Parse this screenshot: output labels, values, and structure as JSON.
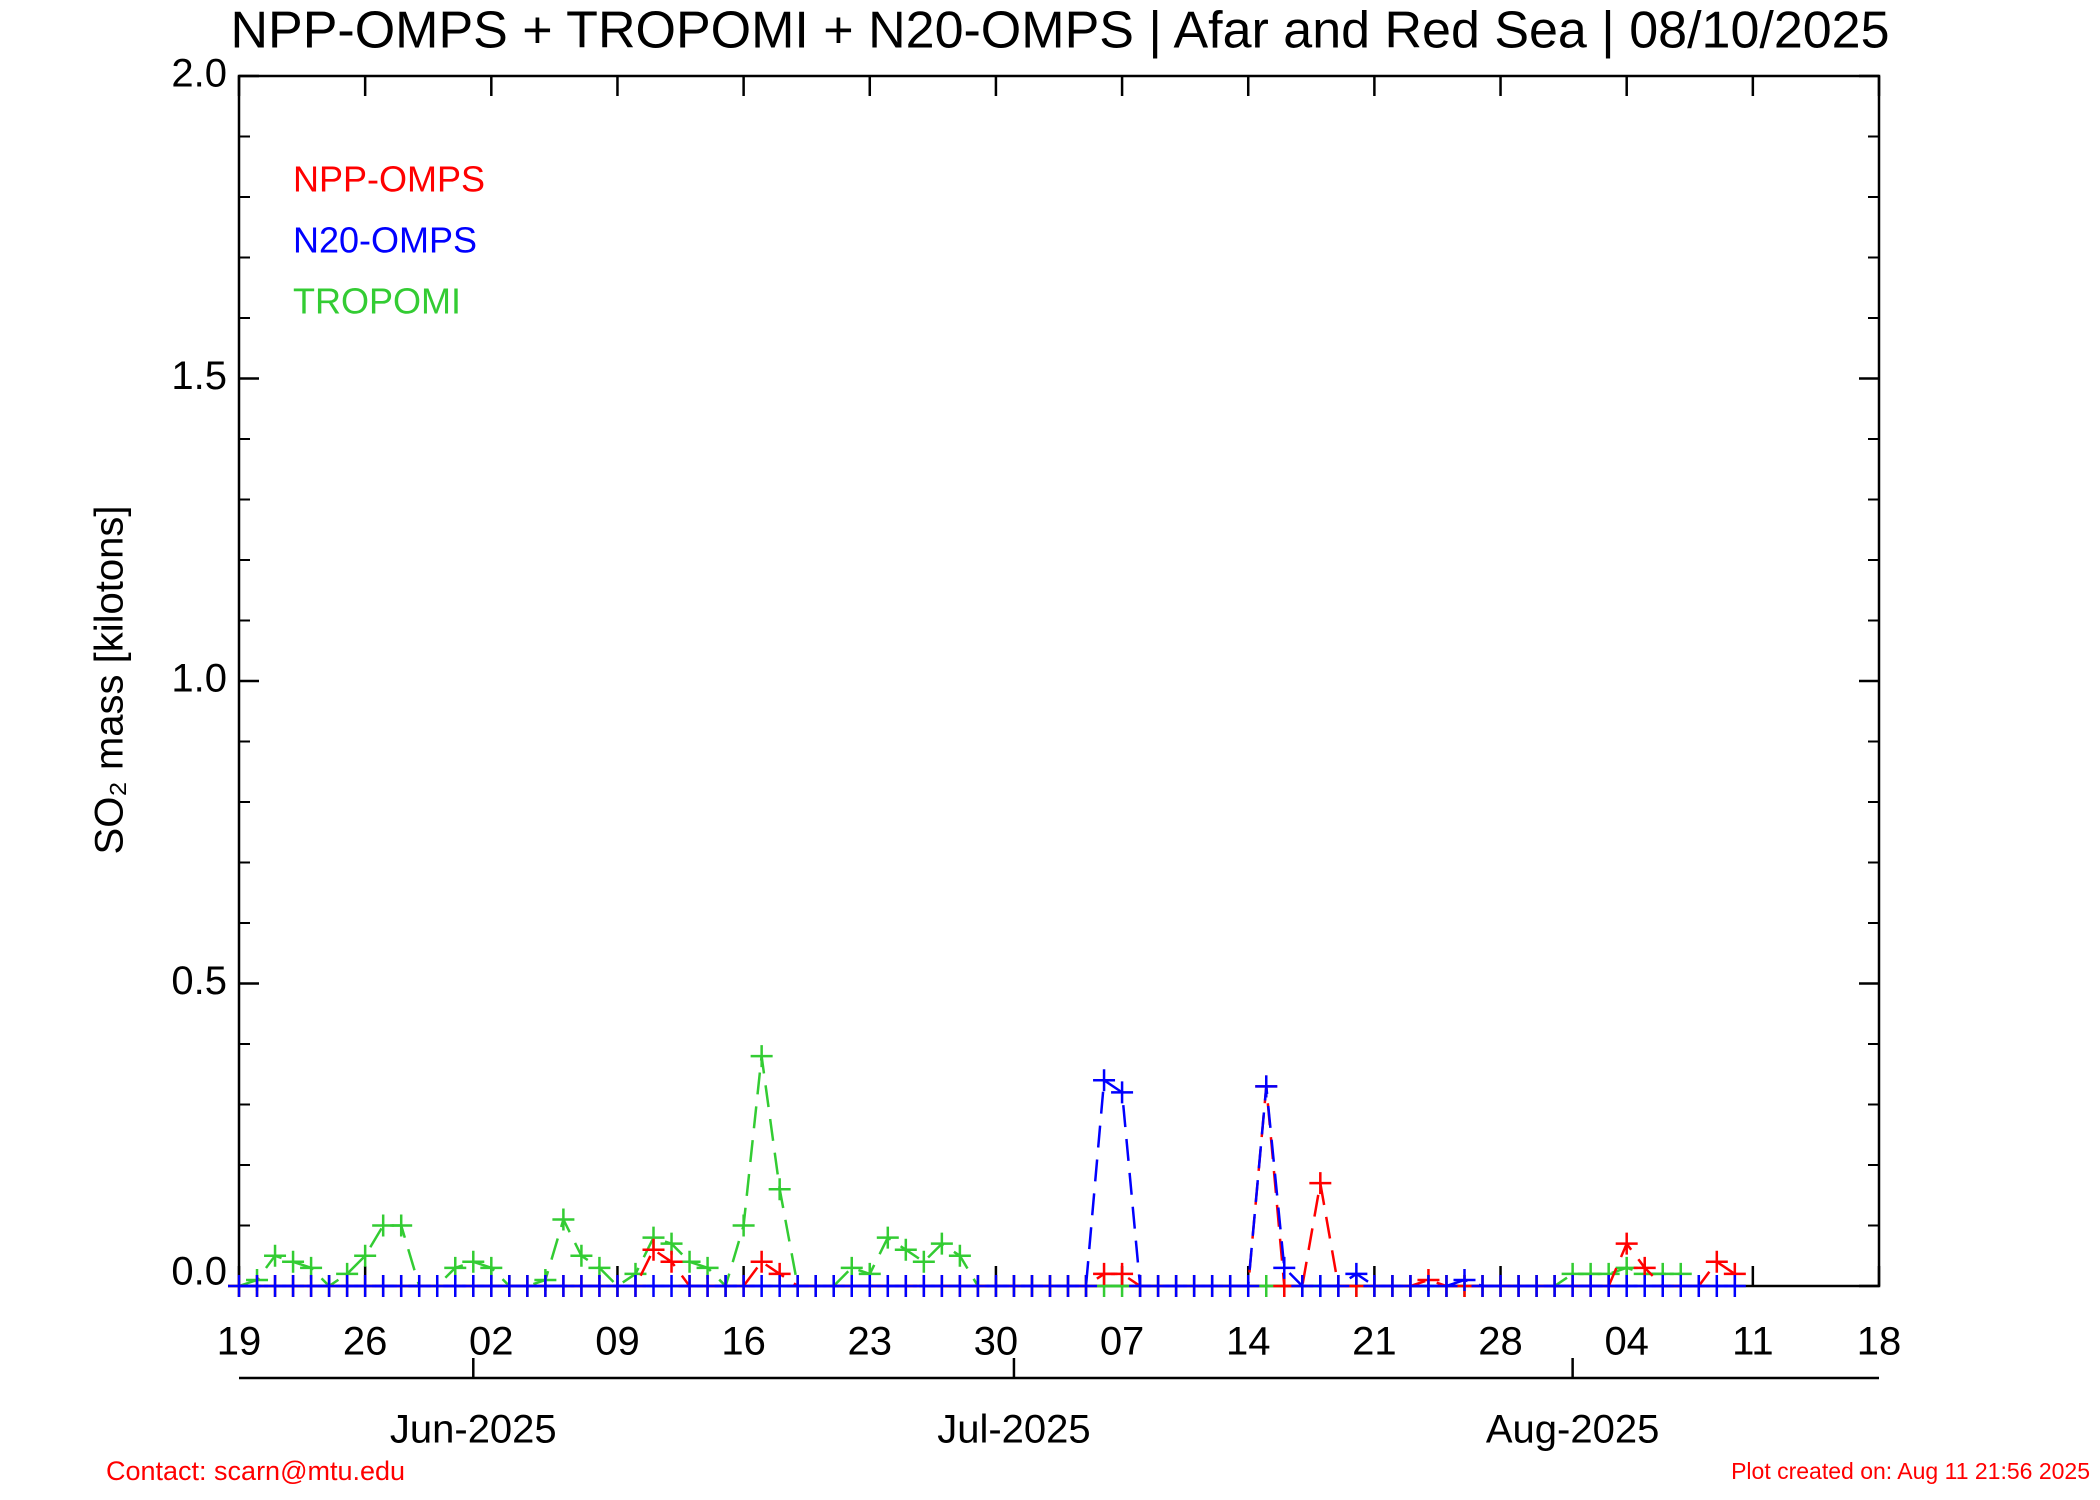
{
  "chart_data": {
    "type": "line",
    "title": "NPP-OMPS + TROPOMI + N20-OMPS | Afar and Red Sea | 08/10/2025",
    "y_label": "SO₂ mass [kilotons]",
    "x": [
      "2025-05-19",
      "2025-05-20",
      "2025-05-21",
      "2025-05-22",
      "2025-05-23",
      "2025-05-24",
      "2025-05-25",
      "2025-05-26",
      "2025-05-27",
      "2025-05-28",
      "2025-05-29",
      "2025-05-30",
      "2025-05-31",
      "2025-06-01",
      "2025-06-02",
      "2025-06-03",
      "2025-06-04",
      "2025-06-05",
      "2025-06-06",
      "2025-06-07",
      "2025-06-08",
      "2025-06-09",
      "2025-06-10",
      "2025-06-11",
      "2025-06-12",
      "2025-06-13",
      "2025-06-14",
      "2025-06-15",
      "2025-06-16",
      "2025-06-17",
      "2025-06-18",
      "2025-06-19",
      "2025-06-20",
      "2025-06-21",
      "2025-06-22",
      "2025-06-23",
      "2025-06-24",
      "2025-06-25",
      "2025-06-26",
      "2025-06-27",
      "2025-06-28",
      "2025-06-29",
      "2025-06-30",
      "2025-07-01",
      "2025-07-02",
      "2025-07-03",
      "2025-07-04",
      "2025-07-05",
      "2025-07-06",
      "2025-07-07",
      "2025-07-08",
      "2025-07-09",
      "2025-07-10",
      "2025-07-11",
      "2025-07-12",
      "2025-07-13",
      "2025-07-14",
      "2025-07-15",
      "2025-07-16",
      "2025-07-17",
      "2025-07-18",
      "2025-07-19",
      "2025-07-20",
      "2025-07-21",
      "2025-07-22",
      "2025-07-23",
      "2025-07-24",
      "2025-07-25",
      "2025-07-26",
      "2025-07-27",
      "2025-07-28",
      "2025-07-29",
      "2025-07-30",
      "2025-07-31",
      "2025-08-01",
      "2025-08-02",
      "2025-08-03",
      "2025-08-04",
      "2025-08-05",
      "2025-08-06",
      "2025-08-07",
      "2025-08-08",
      "2025-08-09",
      "2025-08-10"
    ],
    "series": [
      {
        "name": "NPP-OMPS",
        "color": "#ff0000",
        "values": [
          0,
          0,
          0,
          0,
          0,
          0,
          0,
          0,
          0,
          0,
          0,
          0,
          0,
          0,
          0,
          0,
          0,
          0,
          0,
          0,
          0,
          0,
          0,
          0.06,
          0.04,
          0,
          0,
          0,
          0,
          0.04,
          0.02,
          0,
          0,
          0,
          0,
          0,
          0,
          0,
          0,
          0,
          0,
          0,
          0,
          0,
          0,
          0,
          0,
          0,
          0.02,
          0.02,
          0,
          0,
          0,
          0,
          0,
          0,
          0,
          0.33,
          0,
          0,
          0.17,
          0,
          0,
          0,
          0,
          0,
          0.01,
          0,
          0,
          0,
          0,
          0,
          0,
          0,
          0,
          0,
          0,
          0.07,
          0.03,
          0,
          0,
          0,
          0.04,
          0.02
        ]
      },
      {
        "name": "N20-OMPS",
        "color": "#0000ff",
        "values": [
          0,
          0,
          0,
          0,
          0,
          0,
          0,
          0,
          0,
          0,
          0,
          0,
          0,
          0,
          0,
          0,
          0,
          0,
          0,
          0,
          0,
          0,
          0,
          0,
          0,
          0,
          0,
          0,
          0,
          0,
          0,
          0,
          0,
          0,
          0,
          0,
          0,
          0,
          0,
          0,
          0,
          0,
          0,
          0,
          0,
          0,
          0,
          0,
          0.34,
          0.32,
          0,
          0,
          0,
          0,
          0,
          0,
          0,
          0.33,
          0.03,
          0,
          0,
          0,
          0.02,
          0,
          0,
          0,
          0,
          0,
          0.01,
          0,
          0,
          0,
          0,
          0,
          0,
          0,
          0,
          0,
          0,
          0,
          0,
          0,
          0,
          0
        ]
      },
      {
        "name": "TROPOMI",
        "color": "#33cc33",
        "values": [
          0,
          0.01,
          0.05,
          0.04,
          0.03,
          0,
          0.02,
          0.05,
          0.1,
          0.1,
          0,
          0,
          0.03,
          0.04,
          0.03,
          0,
          0,
          0.01,
          0.11,
          0.05,
          0.03,
          0,
          0.02,
          0.08,
          0.07,
          0.04,
          0.03,
          0,
          0.1,
          0.38,
          0.16,
          0,
          0,
          0,
          0.03,
          0.02,
          0.08,
          0.06,
          0.04,
          0.07,
          0.05,
          0,
          0,
          0,
          0,
          0,
          0,
          0,
          0,
          0,
          0,
          0,
          0,
          0,
          0,
          0,
          0,
          0,
          0,
          0,
          0,
          0,
          0,
          0,
          0,
          0,
          0,
          0,
          0,
          0,
          0,
          0,
          0,
          0,
          0.02,
          0.02,
          0.02,
          0.03,
          0.02,
          0.02,
          0.02,
          null,
          null,
          null
        ]
      }
    ],
    "draw_order": [
      2,
      0,
      1
    ],
    "xlim": [
      "2025-05-19",
      "2025-08-18"
    ],
    "xticks": [
      {
        "value": "2025-05-19",
        "label": "19"
      },
      {
        "value": "2025-05-26",
        "label": "26"
      },
      {
        "value": "2025-06-02",
        "label": "02"
      },
      {
        "value": "2025-06-09",
        "label": "09"
      },
      {
        "value": "2025-06-16",
        "label": "16"
      },
      {
        "value": "2025-06-23",
        "label": "23"
      },
      {
        "value": "2025-06-30",
        "label": "30"
      },
      {
        "value": "2025-07-07",
        "label": "07"
      },
      {
        "value": "2025-07-14",
        "label": "14"
      },
      {
        "value": "2025-07-21",
        "label": "21"
      },
      {
        "value": "2025-07-28",
        "label": "28"
      },
      {
        "value": "2025-08-04",
        "label": "04"
      },
      {
        "value": "2025-08-11",
        "label": "11"
      },
      {
        "value": "2025-08-18",
        "label": "18"
      }
    ],
    "month_ticks": [
      {
        "value": "2025-06-01",
        "label": "Jun-2025"
      },
      {
        "value": "2025-07-01",
        "label": "Jul-2025"
      },
      {
        "value": "2025-08-01",
        "label": "Aug-2025"
      }
    ],
    "ylim": [
      0,
      2
    ],
    "yticks": [
      {
        "value": 0,
        "label": "0.0"
      },
      0.5,
      {
        "value": 1,
        "label": "1.0"
      },
      1.5,
      {
        "value": 2,
        "label": "2.0"
      }
    ],
    "yminorticks": [
      0.1,
      0.2,
      0.3,
      0.4,
      0.6,
      0.7,
      0.8,
      0.9,
      1.1,
      1.2,
      1.3,
      1.4,
      1.6,
      1.7,
      1.8,
      1.9
    ],
    "legend": "upper left",
    "line_style": "dashed",
    "marker": "plus"
  },
  "footer": {
    "contact": "Contact: scarn@mtu.edu",
    "created": "Plot created on: Aug 11 21:56 2025"
  }
}
